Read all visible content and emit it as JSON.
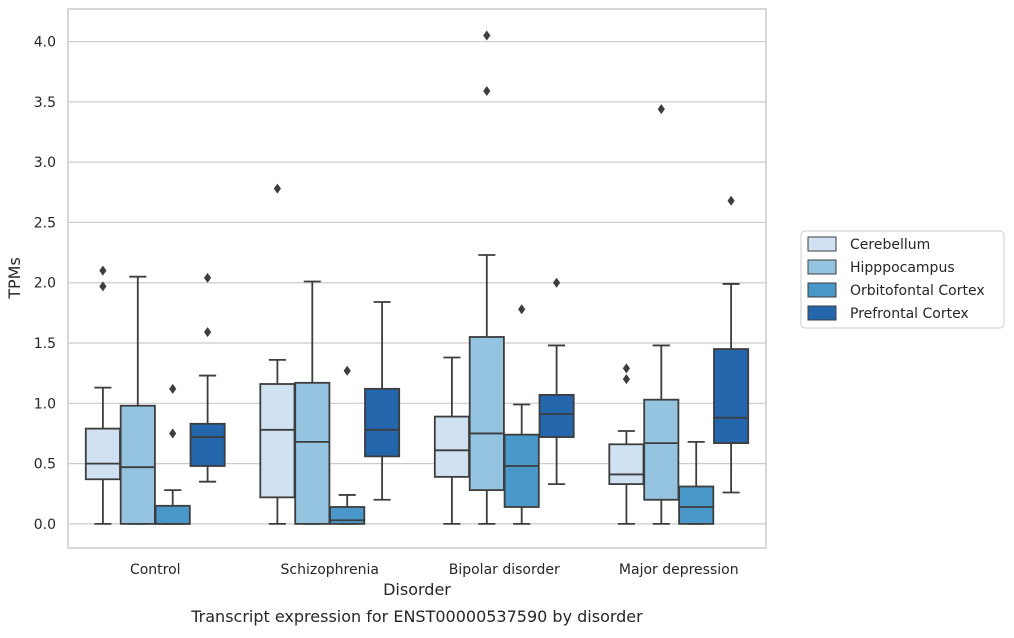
{
  "chart_data": {
    "type": "box",
    "title": "",
    "caption": "Transcript expression for ENST00000537590 by disorder",
    "xlabel": "Disorder",
    "ylabel": "TPMs",
    "ylim": [
      -0.2,
      4.27
    ],
    "yticks": [
      "0.0",
      "0.5",
      "1.0",
      "1.5",
      "2.0",
      "2.5",
      "3.0",
      "3.5",
      "4.0"
    ],
    "grid": true,
    "legend_placement": "center-right outside",
    "categories": [
      "Control",
      "Schizophrenia",
      "Bipolar disorder",
      "Major depression"
    ],
    "series": [
      {
        "name": "Cerebellum",
        "color": "#d0e1f2",
        "boxes": [
          {
            "q1": 0.37,
            "median": 0.5,
            "q3": 0.79,
            "whisker_low": 0.0,
            "whisker_high": 1.13,
            "outliers": [
              1.97,
              2.1
            ]
          },
          {
            "q1": 0.22,
            "median": 0.78,
            "q3": 1.16,
            "whisker_low": 0.0,
            "whisker_high": 1.36,
            "outliers": [
              2.78
            ]
          },
          {
            "q1": 0.39,
            "median": 0.61,
            "q3": 0.89,
            "whisker_low": 0.0,
            "whisker_high": 1.38,
            "outliers": []
          },
          {
            "q1": 0.33,
            "median": 0.41,
            "q3": 0.66,
            "whisker_low": 0.0,
            "whisker_high": 0.77,
            "outliers": [
              1.2,
              1.29
            ]
          }
        ]
      },
      {
        "name": "Hipppocampus",
        "color": "#94c4df",
        "boxes": [
          {
            "q1": 0.0,
            "median": 0.47,
            "q3": 0.98,
            "whisker_low": 0.0,
            "whisker_high": 2.05,
            "outliers": []
          },
          {
            "q1": 0.0,
            "median": 0.68,
            "q3": 1.17,
            "whisker_low": 0.0,
            "whisker_high": 2.01,
            "outliers": []
          },
          {
            "q1": 0.28,
            "median": 0.75,
            "q3": 1.55,
            "whisker_low": 0.0,
            "whisker_high": 2.23,
            "outliers": [
              3.59,
              4.05
            ]
          },
          {
            "q1": 0.2,
            "median": 0.67,
            "q3": 1.03,
            "whisker_low": 0.0,
            "whisker_high": 1.48,
            "outliers": [
              3.44
            ]
          }
        ]
      },
      {
        "name": "Orbitofontal Cortex",
        "color": "#4a98c9",
        "boxes": [
          {
            "q1": 0.0,
            "median": 0.0,
            "q3": 0.15,
            "whisker_low": 0.0,
            "whisker_high": 0.28,
            "outliers": [
              0.75,
              1.12
            ]
          },
          {
            "q1": 0.0,
            "median": 0.03,
            "q3": 0.14,
            "whisker_low": 0.0,
            "whisker_high": 0.24,
            "outliers": [
              1.27
            ]
          },
          {
            "q1": 0.14,
            "median": 0.48,
            "q3": 0.74,
            "whisker_low": 0.0,
            "whisker_high": 0.99,
            "outliers": [
              1.78
            ]
          },
          {
            "q1": 0.0,
            "median": 0.14,
            "q3": 0.31,
            "whisker_low": 0.0,
            "whisker_high": 0.68,
            "outliers": []
          }
        ]
      },
      {
        "name": "Prefrontal Cortex",
        "color": "#2466ac",
        "boxes": [
          {
            "q1": 0.48,
            "median": 0.72,
            "q3": 0.83,
            "whisker_low": 0.35,
            "whisker_high": 1.23,
            "outliers": [
              1.59,
              2.04
            ]
          },
          {
            "q1": 0.56,
            "median": 0.78,
            "q3": 1.12,
            "whisker_low": 0.2,
            "whisker_high": 1.84,
            "outliers": []
          },
          {
            "q1": 0.72,
            "median": 0.91,
            "q3": 1.07,
            "whisker_low": 0.33,
            "whisker_high": 1.48,
            "outliers": [
              2.0
            ]
          },
          {
            "q1": 0.67,
            "median": 0.88,
            "q3": 1.45,
            "whisker_low": 0.26,
            "whisker_high": 1.99,
            "outliers": [
              2.68
            ]
          }
        ]
      }
    ]
  }
}
